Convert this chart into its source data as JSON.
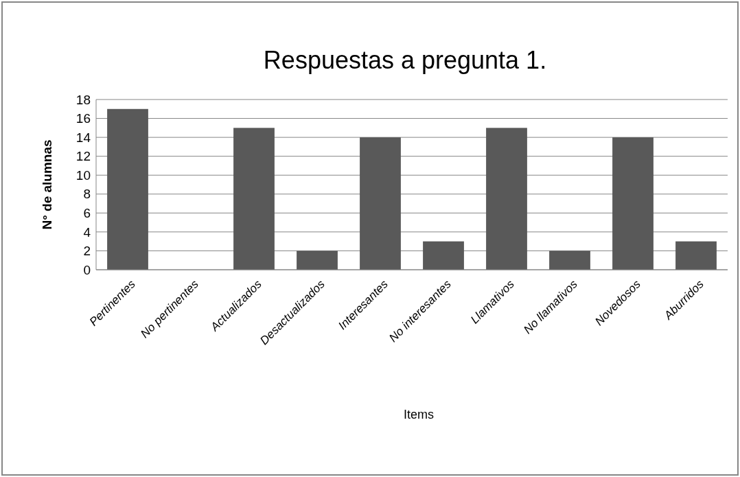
{
  "chart_data": {
    "type": "bar",
    "title": "Respuestas a pregunta 1.",
    "xlabel": "Items",
    "ylabel": "N° de alumnas",
    "categories": [
      "Pertinentes",
      "No pertinentes",
      "Actualizados",
      "Desactualizados",
      "Interesantes",
      "No interesantes",
      "Llamativos",
      "No llamativos",
      "Novedosos",
      "Aburridos"
    ],
    "values": [
      17,
      0,
      15,
      2,
      14,
      3,
      15,
      2,
      14,
      3
    ],
    "color": "#595959",
    "ylim": [
      0,
      18
    ],
    "yticks": [
      0,
      2,
      4,
      6,
      8,
      10,
      12,
      14,
      16,
      18
    ],
    "grid": "y"
  }
}
